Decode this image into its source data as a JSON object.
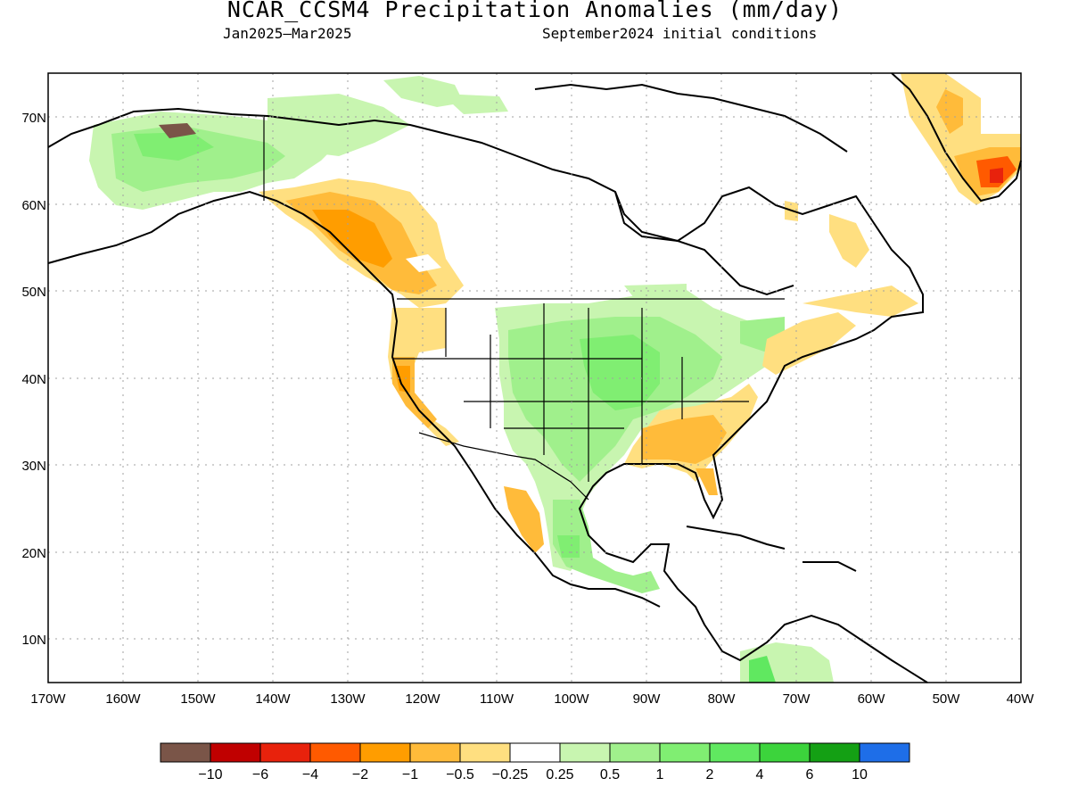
{
  "header": {
    "title": "NCAR_CCSM4 Precipitation Anomalies (mm/day)",
    "period": "Jan2025–Mar2025",
    "initial_conditions": "September2024 initial conditions"
  },
  "map": {
    "lat_ticks": [
      "70N",
      "60N",
      "50N",
      "40N",
      "30N",
      "20N",
      "10N"
    ],
    "lon_ticks": [
      "170W",
      "160W",
      "150W",
      "140W",
      "130W",
      "120W",
      "110W",
      "100W",
      "90W",
      "80W",
      "70W",
      "60W",
      "50W",
      "40W"
    ]
  },
  "colors": {
    "brown": "#7a5548",
    "dark_red": "#c00000",
    "red": "#e8220c",
    "red_orange": "#ff5a00",
    "orange": "#ff9d00",
    "light_orange": "#ffbb3a",
    "yellow": "#ffdf80",
    "white": "#ffffff",
    "pale_green": "#c8f5b0",
    "light_green": "#a0f08c",
    "green1": "#80ee72",
    "green2": "#60e860",
    "green3": "#3cd43c",
    "dark_green": "#14a014",
    "blue": "#1e6ee8"
  },
  "legend": {
    "colors": [
      "#7a5548",
      "#c00000",
      "#e8220c",
      "#ff5a00",
      "#ff9d00",
      "#ffbb3a",
      "#ffdf80",
      "#ffffff",
      "#c8f5b0",
      "#a0f08c",
      "#80ee72",
      "#60e860",
      "#3cd43c",
      "#14a014",
      "#1e6ee8"
    ],
    "labels": [
      "−10",
      "−6",
      "−4",
      "−2",
      "−1",
      "−0.5",
      "−0.25",
      "0.25",
      "0.5",
      "1",
      "2",
      "4",
      "6",
      "10"
    ]
  }
}
